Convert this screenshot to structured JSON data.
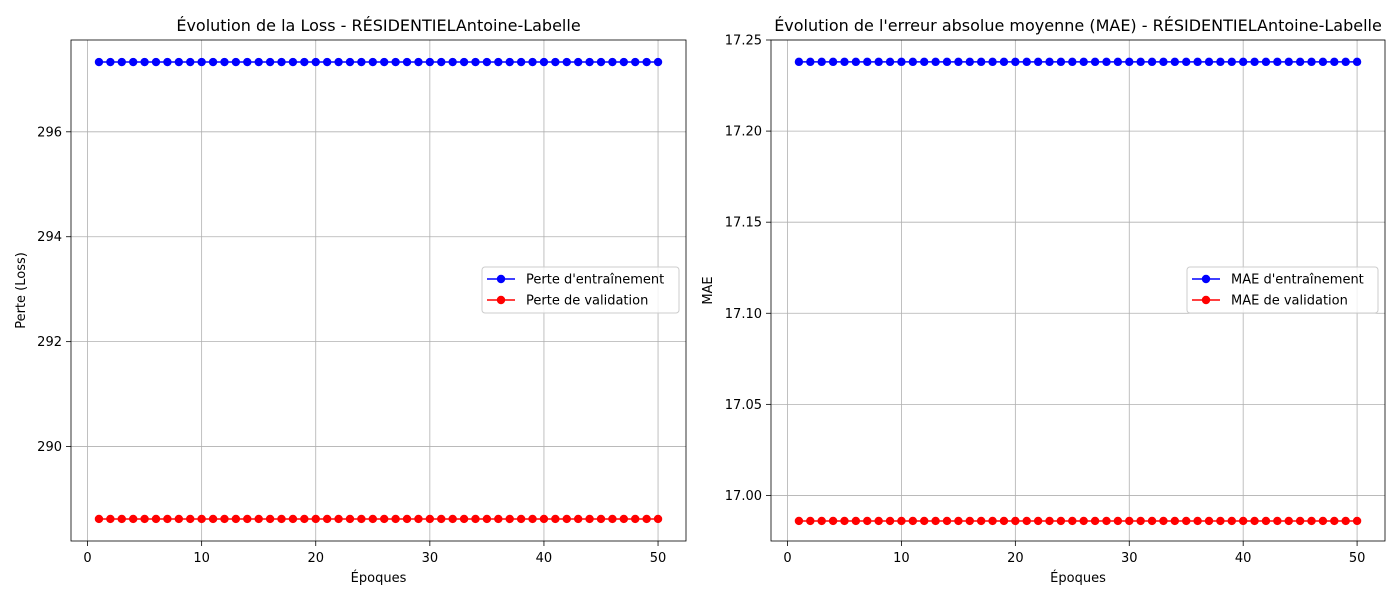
{
  "chart_data": [
    {
      "type": "line",
      "title": "Évolution de la Loss - RÉSIDENTIELAntoine-Labelle",
      "xlabel": "Époques",
      "ylabel": "Perte (Loss)",
      "xlim": [
        -1.45,
        52.45
      ],
      "ylim": [
        288.2,
        297.75
      ],
      "xticks": [
        0,
        10,
        20,
        30,
        40,
        50
      ],
      "xtick_labels": [
        "0",
        "10",
        "20",
        "30",
        "40",
        "50"
      ],
      "yticks": [
        290,
        292,
        294,
        296
      ],
      "ytick_labels": [
        "290",
        "292",
        "294",
        "296"
      ],
      "grid": true,
      "legend_position": "center-right",
      "x": [
        1,
        2,
        3,
        4,
        5,
        6,
        7,
        8,
        9,
        10,
        11,
        12,
        13,
        14,
        15,
        16,
        17,
        18,
        19,
        20,
        21,
        22,
        23,
        24,
        25,
        26,
        27,
        28,
        29,
        30,
        31,
        32,
        33,
        34,
        35,
        36,
        37,
        38,
        39,
        40,
        41,
        42,
        43,
        44,
        45,
        46,
        47,
        48,
        49,
        50
      ],
      "series": [
        {
          "name": "Perte d'entraînement",
          "color": "#0000ff",
          "marker": "circle",
          "values": [
            297.33,
            297.33,
            297.33,
            297.33,
            297.33,
            297.33,
            297.33,
            297.33,
            297.33,
            297.33,
            297.33,
            297.33,
            297.33,
            297.33,
            297.33,
            297.33,
            297.33,
            297.33,
            297.33,
            297.33,
            297.33,
            297.33,
            297.33,
            297.33,
            297.33,
            297.33,
            297.33,
            297.33,
            297.33,
            297.33,
            297.33,
            297.33,
            297.33,
            297.33,
            297.33,
            297.33,
            297.33,
            297.33,
            297.33,
            297.33,
            297.33,
            297.33,
            297.33,
            297.33,
            297.33,
            297.33,
            297.33,
            297.33,
            297.33,
            297.33
          ]
        },
        {
          "name": "Perte de validation",
          "color": "#ff0000",
          "marker": "circle",
          "values": [
            288.62,
            288.62,
            288.62,
            288.62,
            288.62,
            288.62,
            288.62,
            288.62,
            288.62,
            288.62,
            288.62,
            288.62,
            288.62,
            288.62,
            288.62,
            288.62,
            288.62,
            288.62,
            288.62,
            288.62,
            288.62,
            288.62,
            288.62,
            288.62,
            288.62,
            288.62,
            288.62,
            288.62,
            288.62,
            288.62,
            288.62,
            288.62,
            288.62,
            288.62,
            288.62,
            288.62,
            288.62,
            288.62,
            288.62,
            288.62,
            288.62,
            288.62,
            288.62,
            288.62,
            288.62,
            288.62,
            288.62,
            288.62,
            288.62,
            288.62
          ]
        }
      ]
    },
    {
      "type": "line",
      "title": "Évolution de l'erreur absolue moyenne (MAE) - RÉSIDENTIELAntoine-Labelle",
      "xlabel": "Époques",
      "ylabel": "MAE",
      "xlim": [
        -1.45,
        52.45
      ],
      "ylim": [
        16.975,
        17.25
      ],
      "xticks": [
        0,
        10,
        20,
        30,
        40,
        50
      ],
      "xtick_labels": [
        "0",
        "10",
        "20",
        "30",
        "40",
        "50"
      ],
      "yticks": [
        17.0,
        17.05,
        17.1,
        17.15,
        17.2,
        17.25
      ],
      "ytick_labels": [
        "17.00",
        "17.05",
        "17.10",
        "17.15",
        "17.20",
        "17.25"
      ],
      "grid": true,
      "legend_position": "center-right",
      "x": [
        1,
        2,
        3,
        4,
        5,
        6,
        7,
        8,
        9,
        10,
        11,
        12,
        13,
        14,
        15,
        16,
        17,
        18,
        19,
        20,
        21,
        22,
        23,
        24,
        25,
        26,
        27,
        28,
        29,
        30,
        31,
        32,
        33,
        34,
        35,
        36,
        37,
        38,
        39,
        40,
        41,
        42,
        43,
        44,
        45,
        46,
        47,
        48,
        49,
        50
      ],
      "series": [
        {
          "name": "MAE d'entraînement",
          "color": "#0000ff",
          "marker": "circle",
          "values": [
            17.238,
            17.238,
            17.238,
            17.238,
            17.238,
            17.238,
            17.238,
            17.238,
            17.238,
            17.238,
            17.238,
            17.238,
            17.238,
            17.238,
            17.238,
            17.238,
            17.238,
            17.238,
            17.238,
            17.238,
            17.238,
            17.238,
            17.238,
            17.238,
            17.238,
            17.238,
            17.238,
            17.238,
            17.238,
            17.238,
            17.238,
            17.238,
            17.238,
            17.238,
            17.238,
            17.238,
            17.238,
            17.238,
            17.238,
            17.238,
            17.238,
            17.238,
            17.238,
            17.238,
            17.238,
            17.238,
            17.238,
            17.238,
            17.238,
            17.238
          ]
        },
        {
          "name": "MAE de validation",
          "color": "#ff0000",
          "marker": "circle",
          "values": [
            16.986,
            16.986,
            16.986,
            16.986,
            16.986,
            16.986,
            16.986,
            16.986,
            16.986,
            16.986,
            16.986,
            16.986,
            16.986,
            16.986,
            16.986,
            16.986,
            16.986,
            16.986,
            16.986,
            16.986,
            16.986,
            16.986,
            16.986,
            16.986,
            16.986,
            16.986,
            16.986,
            16.986,
            16.986,
            16.986,
            16.986,
            16.986,
            16.986,
            16.986,
            16.986,
            16.986,
            16.986,
            16.986,
            16.986,
            16.986,
            16.986,
            16.986,
            16.986,
            16.986,
            16.986,
            16.986,
            16.986,
            16.986,
            16.986,
            16.986
          ]
        }
      ]
    }
  ]
}
